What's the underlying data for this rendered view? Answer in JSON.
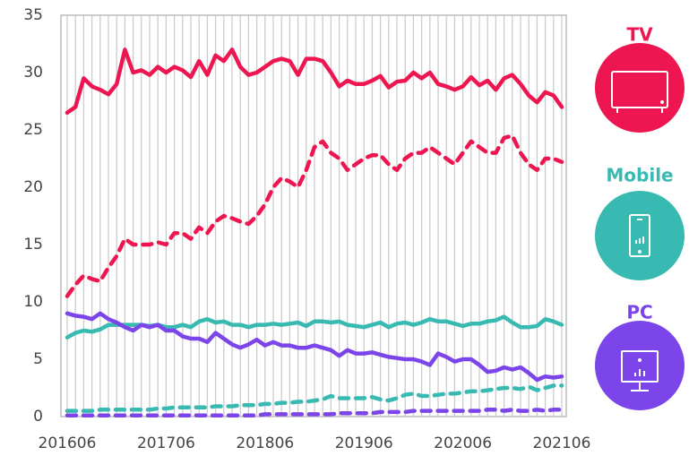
{
  "chart_data": {
    "type": "line",
    "categories": [
      "201606",
      null,
      null,
      null,
      null,
      null,
      null,
      null,
      null,
      null,
      null,
      null,
      "201706",
      null,
      null,
      null,
      null,
      null,
      null,
      null,
      null,
      null,
      null,
      null,
      "201806",
      null,
      null,
      null,
      null,
      null,
      null,
      null,
      null,
      null,
      null,
      null,
      "201906",
      null,
      null,
      null,
      null,
      null,
      null,
      null,
      null,
      null,
      null,
      null,
      "202006",
      null,
      null,
      null,
      null,
      null,
      null,
      null,
      null,
      null,
      null,
      null,
      "202106"
    ],
    "ylim": [
      0,
      35
    ],
    "yticks": [
      0,
      5,
      10,
      15,
      20,
      25,
      30,
      35
    ],
    "grid": true,
    "legend": [
      {
        "label": "TV",
        "color": "#ee1651"
      },
      {
        "label": "Mobile",
        "color": "#38bab3"
      },
      {
        "label": "PC",
        "color": "#7b45ea"
      }
    ],
    "series": [
      {
        "color": "#ee1651",
        "dash": false,
        "values": [
          26.5,
          27,
          29.5,
          28.8,
          28.5,
          28.1,
          29,
          32,
          30,
          30.2,
          29.8,
          30.5,
          30,
          30.5,
          30.2,
          29.6,
          31,
          29.8,
          31.5,
          31,
          32,
          30.5,
          29.8,
          30,
          30.5,
          31,
          31.2,
          31,
          29.8,
          31.2,
          31.2,
          31,
          30,
          28.8,
          29.3,
          29,
          29,
          29.3,
          29.7,
          28.7,
          29.2,
          29.3,
          30,
          29.5,
          30,
          29,
          28.8,
          28.5,
          28.8,
          29.6,
          28.9,
          29.3,
          28.5,
          29.5,
          29.8,
          29,
          28,
          27.4,
          28.3,
          28,
          27
        ]
      },
      {
        "color": "#ee1651",
        "dash": true,
        "values": [
          10.5,
          11.5,
          12.3,
          12,
          11.8,
          13,
          14,
          15.5,
          15,
          15,
          15,
          15.2,
          15,
          16,
          16,
          15.5,
          16.5,
          16,
          17,
          17.5,
          17.3,
          17,
          16.8,
          17.5,
          18.5,
          20,
          20.8,
          20.5,
          20,
          21.5,
          23.5,
          24,
          23,
          22.5,
          21.5,
          22,
          22.5,
          22.8,
          22.8,
          22,
          21.5,
          22.5,
          23,
          23,
          23.5,
          23,
          22.5,
          22,
          23,
          24,
          23.5,
          23,
          23,
          24.3,
          24.5,
          23,
          22,
          21.5,
          22.5,
          22.5,
          22.2
        ]
      },
      {
        "color": "#38bab3",
        "dash": false,
        "values": [
          6.9,
          7.3,
          7.5,
          7.4,
          7.6,
          8,
          8,
          8,
          8,
          8,
          7.9,
          8,
          7.8,
          7.8,
          8,
          7.8,
          8.3,
          8.5,
          8.2,
          8.3,
          8,
          8,
          7.8,
          8,
          8,
          8.1,
          8,
          8.1,
          8.2,
          7.9,
          8.3,
          8.3,
          8.2,
          8.3,
          8,
          7.9,
          7.8,
          8,
          8.2,
          7.8,
          8.1,
          8.2,
          8,
          8.2,
          8.5,
          8.3,
          8.3,
          8.1,
          7.9,
          8.1,
          8.1,
          8.3,
          8.4,
          8.7,
          8.2,
          7.8,
          7.8,
          7.9,
          8.5,
          8.3,
          8
        ]
      },
      {
        "color": "#38bab3",
        "dash": true,
        "values": [
          0.5,
          0.5,
          0.5,
          0.5,
          0.6,
          0.6,
          0.6,
          0.6,
          0.6,
          0.6,
          0.6,
          0.7,
          0.7,
          0.8,
          0.8,
          0.8,
          0.8,
          0.8,
          0.9,
          0.9,
          0.9,
          1.0,
          1.0,
          1.0,
          1.1,
          1.1,
          1.2,
          1.2,
          1.3,
          1.3,
          1.4,
          1.5,
          1.8,
          1.6,
          1.6,
          1.6,
          1.6,
          1.7,
          1.5,
          1.4,
          1.6,
          1.9,
          2.0,
          1.8,
          1.8,
          1.9,
          2.0,
          2.0,
          2.1,
          2.2,
          2.2,
          2.3,
          2.4,
          2.5,
          2.5,
          2.4,
          2.6,
          2.3,
          2.5,
          2.7,
          2.7
        ]
      },
      {
        "color": "#7b45ea",
        "dash": false,
        "values": [
          9,
          8.8,
          8.7,
          8.5,
          9,
          8.5,
          8.2,
          7.8,
          7.5,
          8,
          7.8,
          8,
          7.5,
          7.5,
          7,
          6.8,
          6.8,
          6.5,
          7.3,
          6.8,
          6.3,
          6,
          6.3,
          6.7,
          6.2,
          6.5,
          6.2,
          6.2,
          6,
          6,
          6.2,
          6,
          5.8,
          5.3,
          5.8,
          5.5,
          5.5,
          5.6,
          5.4,
          5.2,
          5.1,
          5,
          5,
          4.8,
          4.5,
          5.5,
          5.2,
          4.8,
          5,
          5,
          4.5,
          3.9,
          4,
          4.3,
          4.1,
          4.3,
          3.8,
          3.2,
          3.5,
          3.4,
          3.5
        ]
      },
      {
        "color": "#7b45ea",
        "dash": true,
        "values": [
          0.1,
          0.1,
          0.1,
          0.1,
          0.1,
          0.1,
          0.1,
          0.1,
          0.1,
          0.1,
          0.1,
          0.1,
          0.1,
          0.1,
          0.1,
          0.1,
          0.1,
          0.1,
          0.1,
          0.1,
          0.1,
          0.1,
          0.1,
          0.1,
          0.2,
          0.2,
          0.2,
          0.2,
          0.2,
          0.2,
          0.2,
          0.2,
          0.2,
          0.3,
          0.3,
          0.3,
          0.3,
          0.3,
          0.4,
          0.4,
          0.4,
          0.4,
          0.5,
          0.5,
          0.5,
          0.5,
          0.5,
          0.5,
          0.5,
          0.5,
          0.5,
          0.6,
          0.6,
          0.5,
          0.6,
          0.5,
          0.5,
          0.6,
          0.5,
          0.6,
          0.6
        ]
      }
    ]
  }
}
